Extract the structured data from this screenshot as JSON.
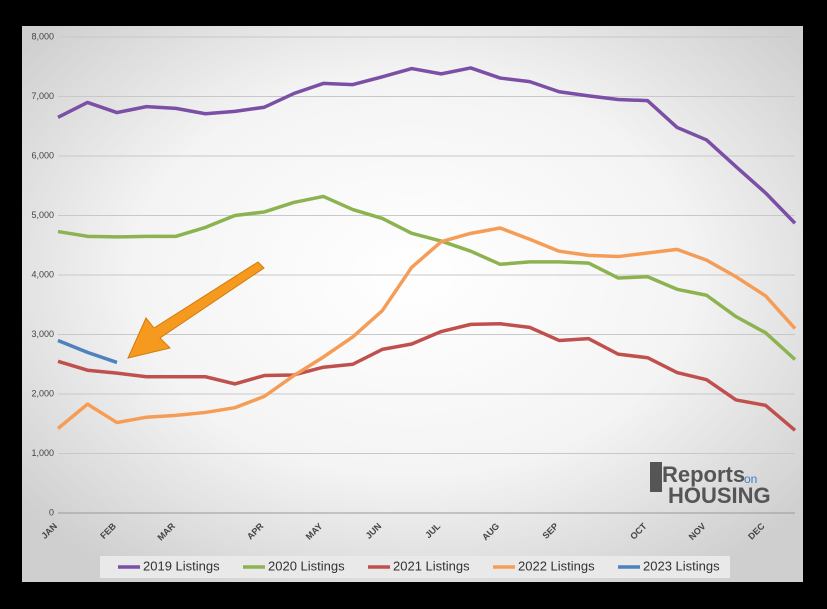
{
  "chart_data": {
    "type": "line",
    "categories": [
      "JAN",
      null,
      "FEB",
      null,
      "MAR",
      null,
      null,
      "APR",
      null,
      "MAY",
      null,
      "JUN",
      null,
      "JUL",
      null,
      "AUG",
      null,
      "SEP",
      null,
      null,
      "OCT",
      null,
      "NOV",
      null,
      "DEC",
      null
    ],
    "series": [
      {
        "name": "2019 Listings",
        "color": "#7b4fa6",
        "values": [
          6650,
          6900,
          6730,
          6830,
          6800,
          6710,
          6750,
          6820,
          7050,
          7220,
          7200,
          7330,
          7470,
          7380,
          7480,
          7310,
          7250,
          7080,
          7010,
          6950,
          6930,
          6480,
          6270,
          5820,
          5380,
          4870
        ]
      },
      {
        "name": "2020 Listings",
        "color": "#8cb350",
        "values": [
          4730,
          4650,
          4640,
          4650,
          4650,
          4800,
          5000,
          5060,
          5220,
          5320,
          5100,
          4950,
          4700,
          4570,
          4400,
          4180,
          4220,
          4220,
          4200,
          3950,
          3970,
          3760,
          3660,
          3300,
          3030,
          2580
        ]
      },
      {
        "name": "2021 Listings",
        "color": "#c0504d",
        "values": [
          2550,
          2400,
          2350,
          2290,
          2290,
          2290,
          2170,
          2310,
          2320,
          2450,
          2500,
          2750,
          2840,
          3050,
          3170,
          3180,
          3120,
          2900,
          2930,
          2670,
          2610,
          2360,
          2240,
          1900,
          1810,
          1390
        ]
      },
      {
        "name": "2022 Listings",
        "color": "#f59d56",
        "values": [
          1420,
          1830,
          1520,
          1610,
          1640,
          1690,
          1770,
          1960,
          2310,
          2620,
          2960,
          3400,
          4130,
          4560,
          4700,
          4790,
          4600,
          4400,
          4330,
          4310,
          4370,
          4430,
          4250,
          3970,
          3650,
          3100
        ]
      },
      {
        "name": "2023 Listings",
        "color": "#4f81bd",
        "values": [
          2900,
          2700,
          2530,
          null,
          null,
          null,
          null,
          null,
          null,
          null,
          null,
          null,
          null,
          null,
          null,
          null,
          null,
          null,
          null,
          null,
          null,
          null,
          null,
          null,
          null,
          null
        ]
      }
    ],
    "ylim": [
      0,
      8000
    ],
    "yticks": [
      0,
      {
        "value": 1000,
        "label": "1,000"
      },
      {
        "value": 2000,
        "label": "2,000"
      },
      {
        "value": 3000,
        "label": "3,000"
      },
      {
        "value": 4000,
        "label": "4,000"
      },
      {
        "value": 5000,
        "label": "5,000"
      },
      {
        "value": 6000,
        "label": "6,000"
      },
      {
        "value": 7000,
        "label": "7,000"
      },
      {
        "value": 8000,
        "label": "8,000"
      }
    ],
    "grid": true,
    "legend": "bottom",
    "logo_text": [
      "Reports",
      "on",
      "HOUSING"
    ]
  }
}
